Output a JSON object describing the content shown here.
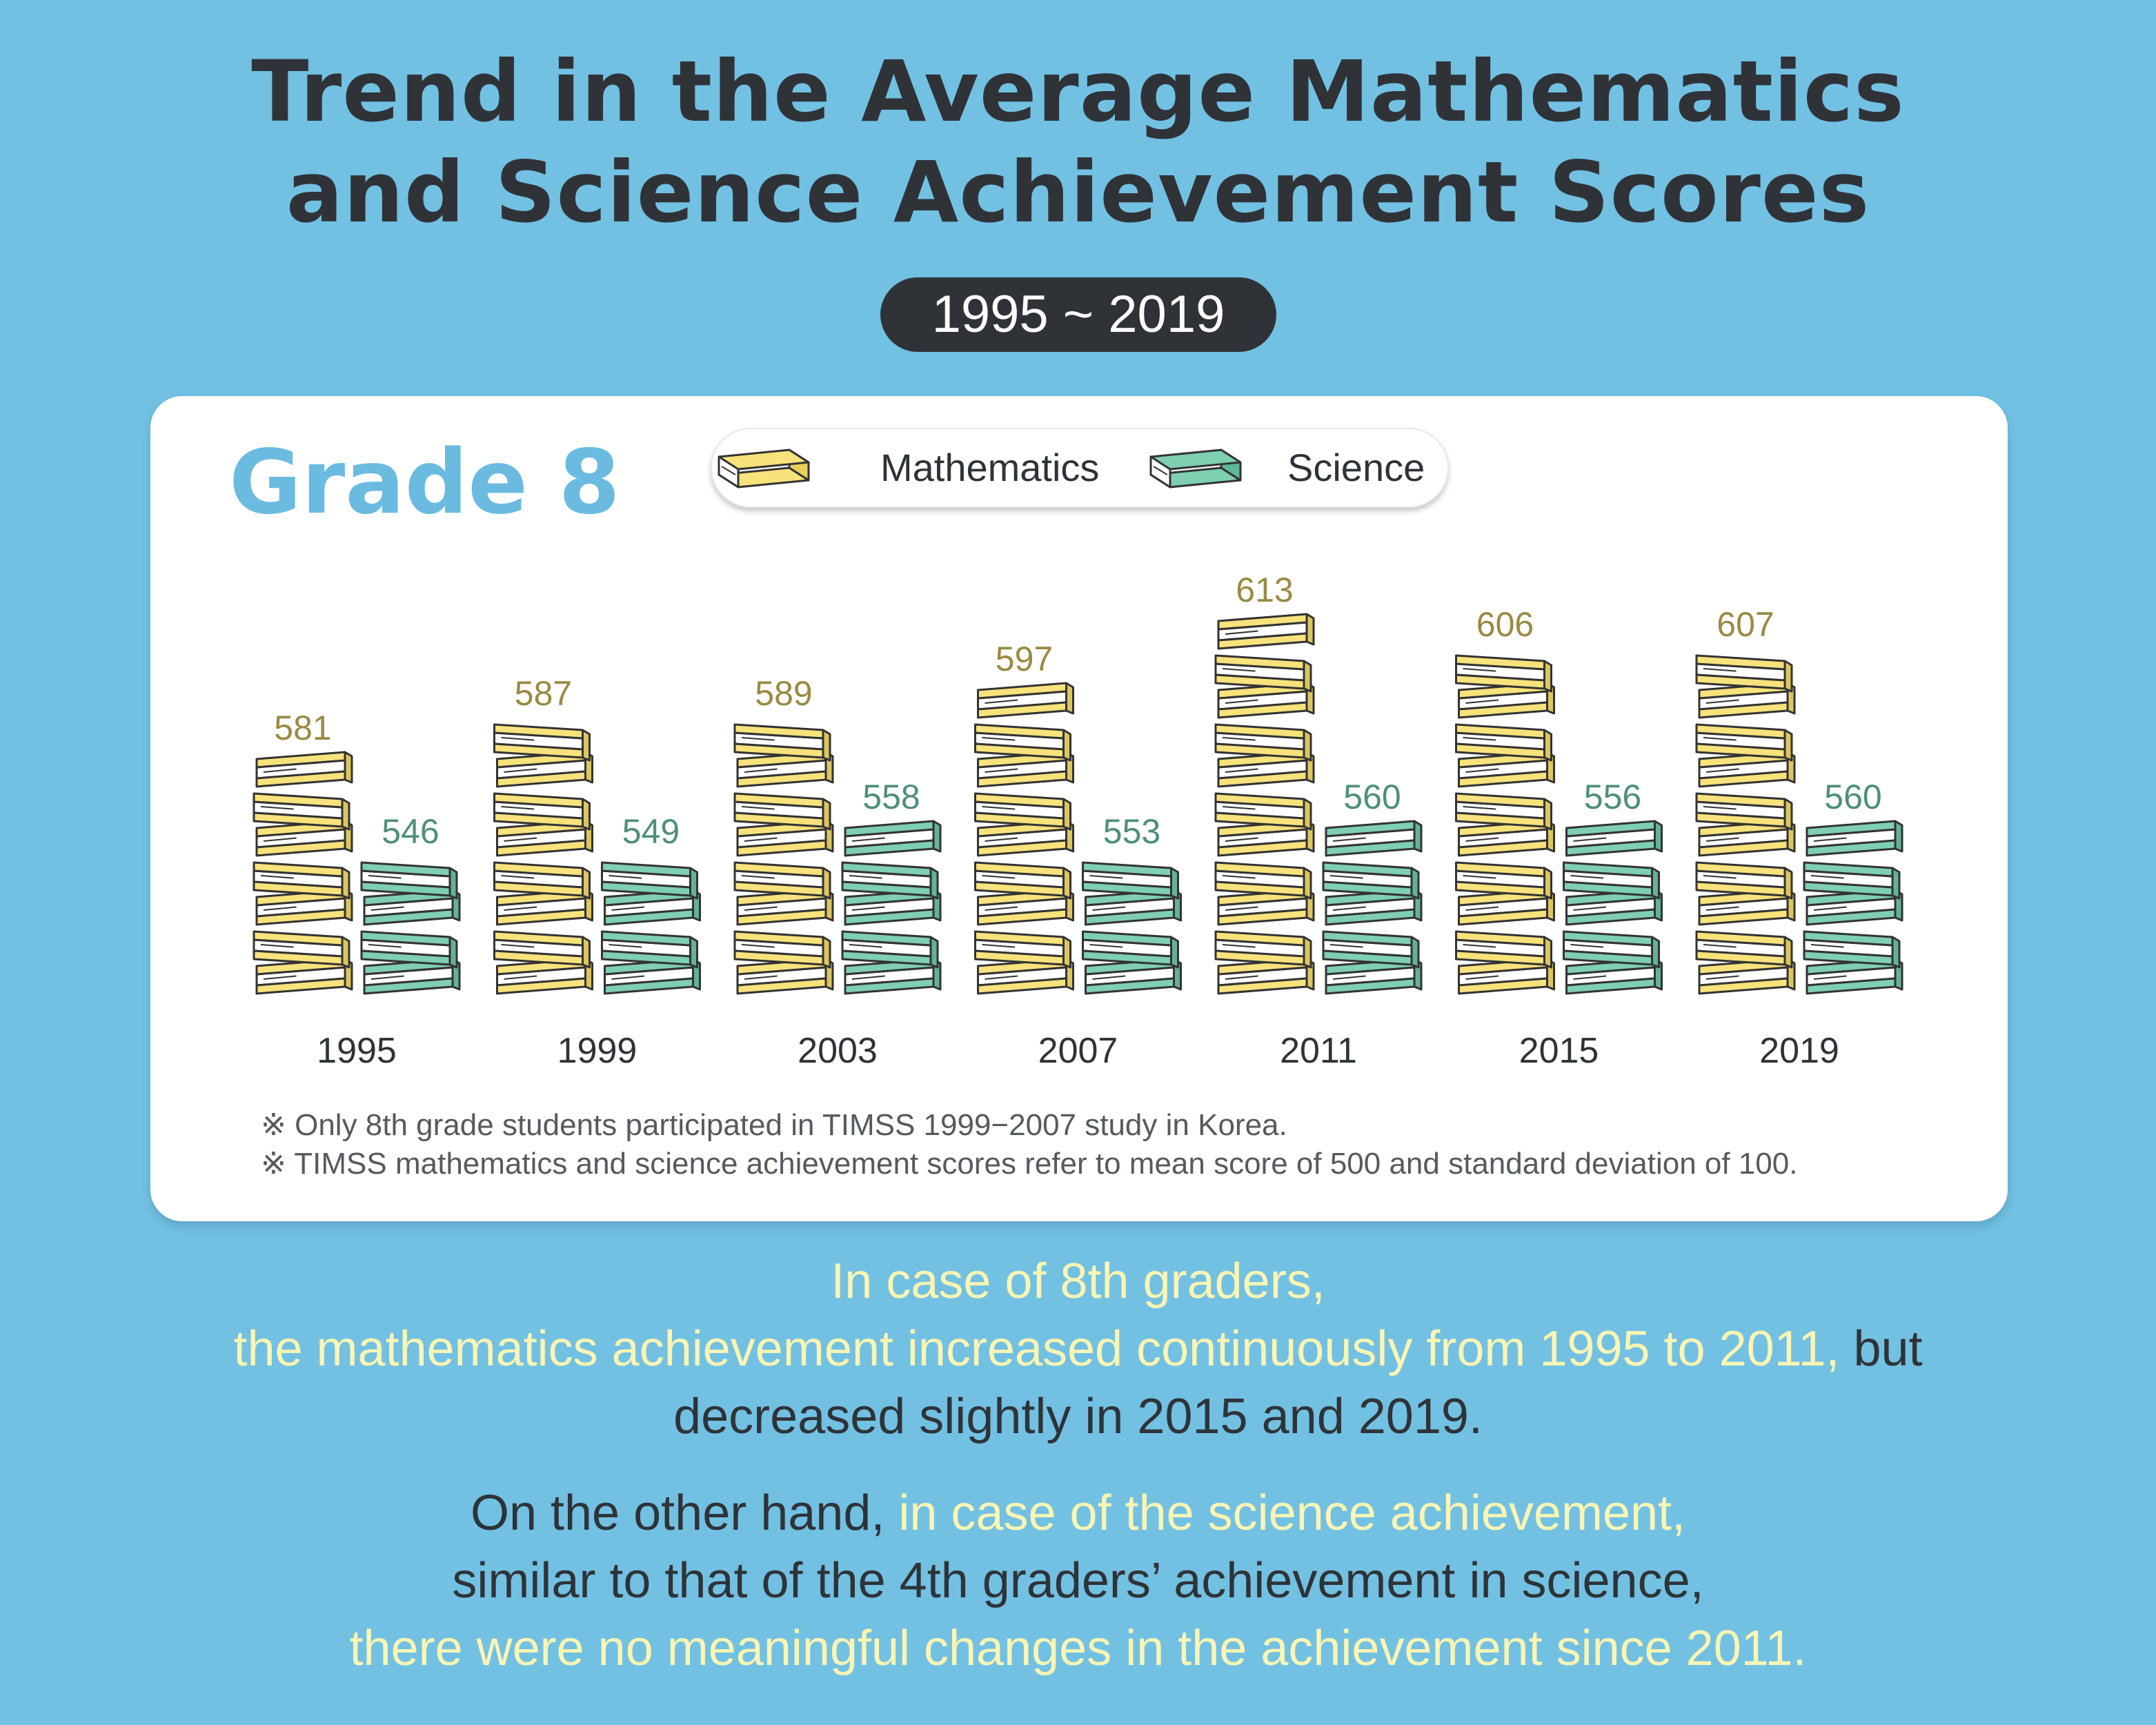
{
  "header": {
    "title_line1": "Trend in the Average Mathematics",
    "title_line2": "and Science Achievement Scores",
    "period": "1995 ~ 2019"
  },
  "card": {
    "grade_label": "Grade 8",
    "legend": {
      "math": "Mathematics",
      "science": "Science"
    },
    "notes": [
      "※ Only 8th grade students participated in TIMSS 1999−2007 study in Korea.",
      "※ TIMSS mathematics and science achievement scores refer to mean score of 500 and standard deviation of 100."
    ]
  },
  "chart_data": {
    "type": "bar",
    "categories": [
      "1995",
      "1999",
      "2003",
      "2007",
      "2011",
      "2015",
      "2019"
    ],
    "series": [
      {
        "name": "Mathematics",
        "values": [
          581,
          587,
          589,
          597,
          613,
          606,
          607
        ],
        "color": "#f8e27c"
      },
      {
        "name": "Science",
        "values": [
          546,
          549,
          558,
          553,
          560,
          556,
          560
        ],
        "color": "#7fcfb1"
      }
    ],
    "math_label_color": "#9a8a43",
    "science_label_color": "#4f8f78"
  },
  "summary": {
    "p1_line1": "In case of 8th graders,",
    "p1_line2_highlight": "the mathematics achievement increased continuously from 1995 to 2011,",
    "p1_line2_rest": " but",
    "p1_line3": "decreased slightly in 2015 and 2019.",
    "p2_line1_start": "On the other hand, ",
    "p2_line1_highlight": "in case of the science achievement,",
    "p2_line2": "similar to that of the 4th graders’ achievement in science,",
    "p2_line3": "there were no meaningful changes in the achievement since 2011."
  }
}
